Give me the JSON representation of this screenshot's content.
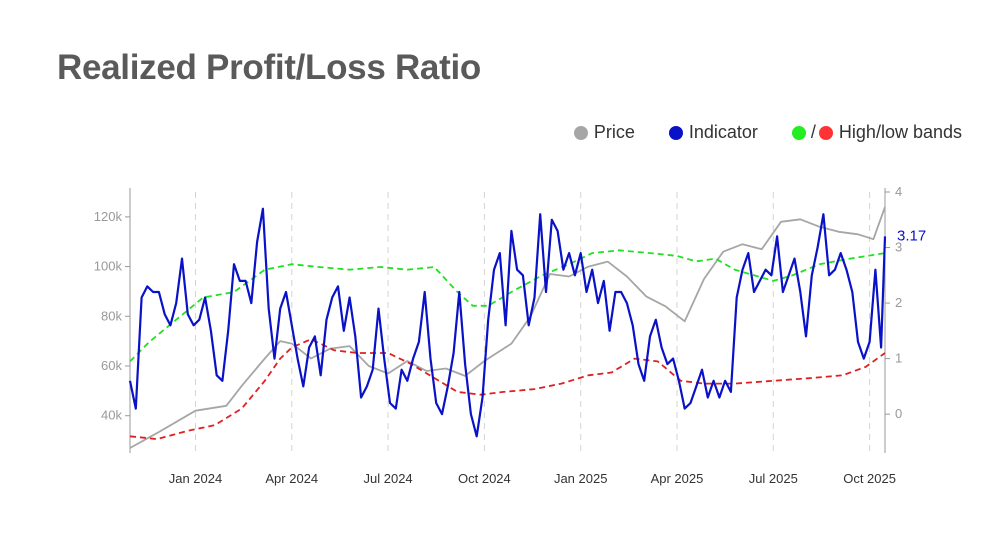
{
  "title": "Realized Profit/Loss Ratio",
  "legend": {
    "price": "Price",
    "indicator": "Indicator",
    "slash": "/",
    "bands": "High/low bands"
  },
  "colors": {
    "price": "#a6a6a6",
    "indicator": "#0a12c8",
    "high_band": "#22e022",
    "low_band": "#e02020",
    "high_dot": "#22ee22",
    "low_dot": "#ff3333",
    "axis": "#999999",
    "grid": "#d4d4d4"
  },
  "chart_data": {
    "type": "line",
    "title": "Realized Profit/Loss Ratio",
    "x_range": [
      2023.83,
      2025.79
    ],
    "x_ticks": [
      {
        "label": "Jan 2024",
        "t": 2024.0
      },
      {
        "label": "Apr 2024",
        "t": 2024.25
      },
      {
        "label": "Jul 2024",
        "t": 2024.5
      },
      {
        "label": "Oct 2024",
        "t": 2024.75
      },
      {
        "label": "Jan 2025",
        "t": 2025.0
      },
      {
        "label": "Apr 2025",
        "t": 2025.25
      },
      {
        "label": "Jul 2025",
        "t": 2025.5
      },
      {
        "label": "Oct 2025",
        "t": 2025.75
      }
    ],
    "y_left": {
      "label": "Price",
      "range": [
        25000,
        130000
      ],
      "ticks": [
        {
          "label": "40k",
          "v": 40000
        },
        {
          "label": "60k",
          "v": 60000
        },
        {
          "label": "80k",
          "v": 80000
        },
        {
          "label": "100k",
          "v": 100000
        },
        {
          "label": "120k",
          "v": 120000
        }
      ]
    },
    "y_right": {
      "label": "Indicator",
      "range": [
        -0.7,
        4.0
      ],
      "ticks": [
        {
          "label": "0",
          "v": 0
        },
        {
          "label": "1",
          "v": 1
        },
        {
          "label": "2",
          "v": 2
        },
        {
          "label": "3",
          "v": 3
        },
        {
          "label": "4",
          "v": 4
        }
      ]
    },
    "last_value_label": "3.17",
    "series": [
      {
        "name": "Price",
        "axis": "left",
        "style": "solid",
        "x": [
          2023.83,
          2023.9,
          2024.0,
          2024.08,
          2024.12,
          2024.18,
          2024.22,
          2024.25,
          2024.3,
          2024.35,
          2024.4,
          2024.45,
          2024.5,
          2024.55,
          2024.6,
          2024.65,
          2024.7,
          2024.75,
          2024.82,
          2024.87,
          2024.92,
          2024.97,
          2025.02,
          2025.07,
          2025.12,
          2025.17,
          2025.22,
          2025.27,
          2025.32,
          2025.37,
          2025.42,
          2025.47,
          2025.52,
          2025.57,
          2025.62,
          2025.67,
          2025.72,
          2025.76,
          2025.79
        ],
        "values": [
          27000,
          33000,
          42000,
          44000,
          52000,
          63000,
          70000,
          69000,
          63000,
          67000,
          68000,
          60000,
          57000,
          62000,
          58000,
          59000,
          56000,
          62000,
          69000,
          80000,
          97000,
          96000,
          100000,
          102000,
          96000,
          88000,
          84000,
          78000,
          95000,
          106000,
          109000,
          107000,
          118000,
          119000,
          116000,
          114000,
          113000,
          111000,
          124000
        ]
      },
      {
        "name": "Indicator",
        "axis": "right",
        "style": "solid",
        "x": [
          2023.83,
          2023.845,
          2023.86,
          2023.875,
          2023.89,
          2023.905,
          2023.92,
          2023.935,
          2023.95,
          2023.965,
          2023.98,
          2023.995,
          2024.01,
          2024.025,
          2024.04,
          2024.055,
          2024.07,
          2024.085,
          2024.1,
          2024.115,
          2024.13,
          2024.145,
          2024.16,
          2024.175,
          2024.19,
          2024.205,
          2024.22,
          2024.235,
          2024.25,
          2024.265,
          2024.28,
          2024.295,
          2024.31,
          2024.325,
          2024.34,
          2024.355,
          2024.37,
          2024.385,
          2024.4,
          2024.415,
          2024.43,
          2024.445,
          2024.46,
          2024.475,
          2024.49,
          2024.505,
          2024.52,
          2024.535,
          2024.55,
          2024.565,
          2024.58,
          2024.595,
          2024.61,
          2024.625,
          2024.64,
          2024.655,
          2024.67,
          2024.685,
          2024.7,
          2024.715,
          2024.73,
          2024.745,
          2024.76,
          2024.775,
          2024.79,
          2024.805,
          2024.82,
          2024.835,
          2024.85,
          2024.865,
          2024.88,
          2024.895,
          2024.91,
          2024.925,
          2024.94,
          2024.955,
          2024.97,
          2024.985,
          2025.0,
          2025.015,
          2025.03,
          2025.045,
          2025.06,
          2025.075,
          2025.09,
          2025.105,
          2025.12,
          2025.135,
          2025.15,
          2025.165,
          2025.18,
          2025.195,
          2025.21,
          2025.225,
          2025.24,
          2025.255,
          2025.27,
          2025.285,
          2025.3,
          2025.315,
          2025.33,
          2025.345,
          2025.36,
          2025.375,
          2025.39,
          2025.405,
          2025.42,
          2025.435,
          2025.45,
          2025.465,
          2025.48,
          2025.495,
          2025.51,
          2025.525,
          2025.54,
          2025.555,
          2025.57,
          2025.585,
          2025.6,
          2025.615,
          2025.63,
          2025.645,
          2025.66,
          2025.675,
          2025.69,
          2025.705,
          2025.72,
          2025.735,
          2025.75,
          2025.765,
          2025.78,
          2025.79
        ],
        "values": [
          0.6,
          0.1,
          2.1,
          2.3,
          2.2,
          2.2,
          1.8,
          1.6,
          2.0,
          2.8,
          1.8,
          1.6,
          1.7,
          2.1,
          1.5,
          0.7,
          0.6,
          1.5,
          2.7,
          2.4,
          2.4,
          2.0,
          3.1,
          3.7,
          1.9,
          1.0,
          1.9,
          2.2,
          1.6,
          1.0,
          0.5,
          1.2,
          1.4,
          0.7,
          1.7,
          2.1,
          2.3,
          1.5,
          2.1,
          1.4,
          0.3,
          0.5,
          0.8,
          1.9,
          1.0,
          0.2,
          0.1,
          0.8,
          0.6,
          1.0,
          1.3,
          2.2,
          1.0,
          0.2,
          0.0,
          0.5,
          1.1,
          2.2,
          0.9,
          0.0,
          -0.4,
          0.3,
          1.7,
          2.6,
          2.9,
          1.6,
          3.3,
          2.6,
          2.5,
          1.6,
          2.1,
          3.6,
          2.2,
          3.5,
          3.3,
          2.6,
          2.9,
          2.5,
          2.9,
          2.2,
          2.6,
          2.0,
          2.4,
          1.5,
          2.2,
          2.2,
          2.0,
          1.6,
          0.9,
          0.6,
          1.4,
          1.7,
          1.2,
          0.9,
          1.0,
          0.6,
          0.1,
          0.2,
          0.5,
          0.8,
          0.3,
          0.6,
          0.3,
          0.6,
          0.4,
          2.1,
          2.6,
          2.9,
          2.2,
          2.4,
          2.6,
          2.5,
          3.2,
          2.2,
          2.5,
          2.8,
          2.2,
          1.4,
          2.5,
          3.0,
          3.6,
          2.5,
          2.6,
          2.9,
          2.6,
          2.2,
          1.3,
          1.0,
          1.3,
          2.6,
          1.2,
          3.2
        ]
      },
      {
        "name": "High band",
        "axis": "right",
        "style": "dashed",
        "x": [
          2023.83,
          2023.88,
          2023.95,
          2024.02,
          2024.1,
          2024.18,
          2024.25,
          2024.32,
          2024.4,
          2024.48,
          2024.55,
          2024.62,
          2024.68,
          2024.72,
          2024.76,
          2024.82,
          2024.9,
          2024.97,
          2025.03,
          2025.1,
          2025.18,
          2025.25,
          2025.3,
          2025.35,
          2025.4,
          2025.45,
          2025.5,
          2025.55,
          2025.62,
          2025.7,
          2025.79
        ],
        "values": [
          0.95,
          1.3,
          1.7,
          2.1,
          2.2,
          2.6,
          2.7,
          2.65,
          2.6,
          2.65,
          2.6,
          2.65,
          2.2,
          1.95,
          1.95,
          2.2,
          2.5,
          2.7,
          2.9,
          2.95,
          2.9,
          2.85,
          2.75,
          2.8,
          2.6,
          2.5,
          2.4,
          2.5,
          2.7,
          2.8,
          2.9
        ]
      },
      {
        "name": "Low band",
        "axis": "right",
        "style": "dashed",
        "x": [
          2023.83,
          2023.9,
          2023.98,
          2024.05,
          2024.12,
          2024.18,
          2024.22,
          2024.25,
          2024.3,
          2024.36,
          2024.42,
          2024.5,
          2024.56,
          2024.62,
          2024.68,
          2024.74,
          2024.8,
          2024.88,
          2024.95,
          2025.02,
          2025.08,
          2025.14,
          2025.2,
          2025.26,
          2025.32,
          2025.4,
          2025.5,
          2025.6,
          2025.68,
          2025.74,
          2025.79
        ],
        "values": [
          -0.4,
          -0.45,
          -0.3,
          -0.2,
          0.1,
          0.6,
          1.0,
          1.2,
          1.35,
          1.15,
          1.1,
          1.1,
          0.9,
          0.65,
          0.4,
          0.35,
          0.4,
          0.45,
          0.55,
          0.7,
          0.75,
          1.0,
          0.95,
          0.6,
          0.55,
          0.55,
          0.6,
          0.65,
          0.7,
          0.85,
          1.1
        ]
      }
    ]
  }
}
